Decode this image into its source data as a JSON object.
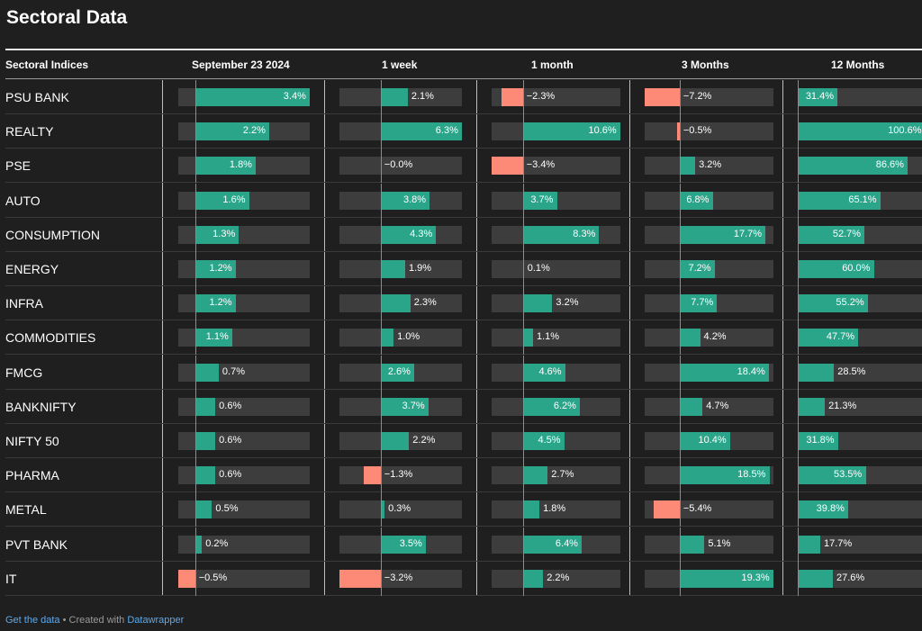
{
  "title": "Sectoral Data",
  "colors": {
    "positive": "#2aa58a",
    "negative": "#fd8a77",
    "track": "#3d3d3d",
    "background": "#1f1f1f"
  },
  "header": {
    "sector": "Sectoral Indices",
    "columns": [
      "September 23 2024",
      "1 week",
      "1 month",
      "3 Months",
      "12 Months"
    ]
  },
  "chart_data": {
    "type": "table",
    "columns": [
      "September 23 2024",
      "1 week",
      "1 month",
      "3 Months",
      "12 Months"
    ],
    "rows": [
      {
        "name": "PSU BANK",
        "values": [
          3.4,
          2.1,
          -2.3,
          -7.2,
          31.4
        ],
        "labels": [
          "3.4%",
          "2.1%",
          "−2.3%",
          "−7.2%",
          "31.4%"
        ]
      },
      {
        "name": "REALTY",
        "values": [
          2.2,
          6.3,
          10.6,
          -0.5,
          100.6
        ],
        "labels": [
          "2.2%",
          "6.3%",
          "10.6%",
          "−0.5%",
          "100.6%"
        ]
      },
      {
        "name": "PSE",
        "values": [
          1.8,
          -0.0,
          -3.4,
          3.2,
          86.6
        ],
        "labels": [
          "1.8%",
          "−0.0%",
          "−3.4%",
          "3.2%",
          "86.6%"
        ]
      },
      {
        "name": "AUTO",
        "values": [
          1.6,
          3.8,
          3.7,
          6.8,
          65.1
        ],
        "labels": [
          "1.6%",
          "3.8%",
          "3.7%",
          "6.8%",
          "65.1%"
        ]
      },
      {
        "name": "CONSUMPTION",
        "values": [
          1.3,
          4.3,
          8.3,
          17.7,
          52.7
        ],
        "labels": [
          "1.3%",
          "4.3%",
          "8.3%",
          "17.7%",
          "52.7%"
        ]
      },
      {
        "name": "ENERGY",
        "values": [
          1.2,
          1.9,
          0.1,
          7.2,
          60.0
        ],
        "labels": [
          "1.2%",
          "1.9%",
          "0.1%",
          "7.2%",
          "60.0%"
        ]
      },
      {
        "name": "INFRA",
        "values": [
          1.2,
          2.3,
          3.2,
          7.7,
          55.2
        ],
        "labels": [
          "1.2%",
          "2.3%",
          "3.2%",
          "7.7%",
          "55.2%"
        ]
      },
      {
        "name": "COMMODITIES",
        "values": [
          1.1,
          1.0,
          1.1,
          4.2,
          47.7
        ],
        "labels": [
          "1.1%",
          "1.0%",
          "1.1%",
          "4.2%",
          "47.7%"
        ]
      },
      {
        "name": "FMCG",
        "values": [
          0.7,
          2.6,
          4.6,
          18.4,
          28.5
        ],
        "labels": [
          "0.7%",
          "2.6%",
          "4.6%",
          "18.4%",
          "28.5%"
        ]
      },
      {
        "name": "BANKNIFTY",
        "values": [
          0.6,
          3.7,
          6.2,
          4.7,
          21.3
        ],
        "labels": [
          "0.6%",
          "3.7%",
          "6.2%",
          "4.7%",
          "21.3%"
        ]
      },
      {
        "name": "NIFTY 50",
        "values": [
          0.6,
          2.2,
          4.5,
          10.4,
          31.8
        ],
        "labels": [
          "0.6%",
          "2.2%",
          "4.5%",
          "10.4%",
          "31.8%"
        ]
      },
      {
        "name": "PHARMA",
        "values": [
          0.6,
          -1.3,
          2.7,
          18.5,
          53.5
        ],
        "labels": [
          "0.6%",
          "−1.3%",
          "2.7%",
          "18.5%",
          "53.5%"
        ]
      },
      {
        "name": "METAL",
        "values": [
          0.5,
          0.3,
          1.8,
          -5.4,
          39.8
        ],
        "labels": [
          "0.5%",
          "0.3%",
          "1.8%",
          "−5.4%",
          "39.8%"
        ]
      },
      {
        "name": "PVT BANK",
        "values": [
          0.2,
          3.5,
          6.4,
          5.1,
          17.7
        ],
        "labels": [
          "0.2%",
          "3.5%",
          "6.4%",
          "5.1%",
          "17.7%"
        ]
      },
      {
        "name": "IT",
        "values": [
          -0.5,
          -3.2,
          2.2,
          19.3,
          27.6
        ],
        "labels": [
          "−0.5%",
          "−3.2%",
          "2.2%",
          "19.3%",
          "27.6%"
        ]
      }
    ]
  },
  "footer": {
    "link": "Get the data",
    "separator": " • Created with ",
    "brand": "Datawrapper"
  }
}
